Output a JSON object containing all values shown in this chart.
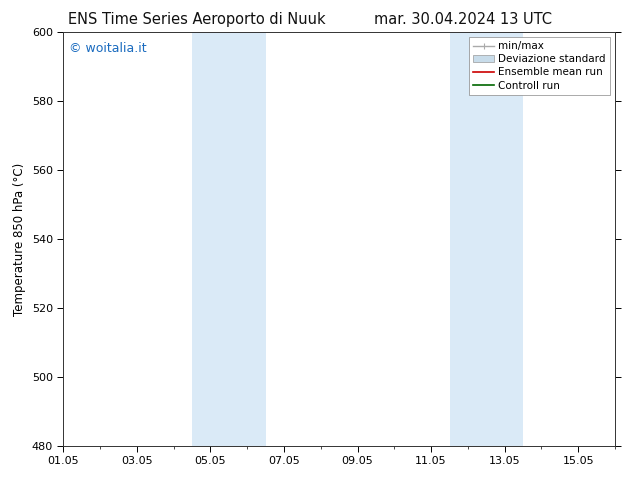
{
  "title_left": "ENS Time Series Aeroporto di Nuuk",
  "title_right": "mar. 30.04.2024 13 UTC",
  "ylabel": "Temperature 850 hPa (°C)",
  "ylim": [
    480,
    600
  ],
  "yticks": [
    480,
    500,
    520,
    540,
    560,
    580,
    600
  ],
  "xtick_labels": [
    "01.05",
    "03.05",
    "05.05",
    "07.05",
    "09.05",
    "11.05",
    "13.05",
    "15.05"
  ],
  "xtick_positions": [
    0,
    2,
    4,
    6,
    8,
    10,
    12,
    14
  ],
  "xlim": [
    0,
    15
  ],
  "shaded_bands": [
    {
      "x_start": 3.5,
      "x_end": 5.5
    },
    {
      "x_start": 10.5,
      "x_end": 12.5
    }
  ],
  "shaded_color": "#daeaf7",
  "background_color": "#ffffff",
  "watermark_text": "© woitalia.it",
  "watermark_color": "#1a6bbf",
  "legend_items": [
    {
      "label": "min/max",
      "color": "#aaaaaa",
      "lw": 1.0
    },
    {
      "label": "Deviazione standard",
      "color": "#c8dcea",
      "lw": 5
    },
    {
      "label": "Ensemble mean run",
      "color": "#cc0000",
      "lw": 1.2
    },
    {
      "label": "Controll run",
      "color": "#006600",
      "lw": 1.2
    }
  ],
  "title_fontsize": 10.5,
  "tick_fontsize": 8,
  "ylabel_fontsize": 8.5,
  "legend_fontsize": 7.5,
  "watermark_fontsize": 9
}
